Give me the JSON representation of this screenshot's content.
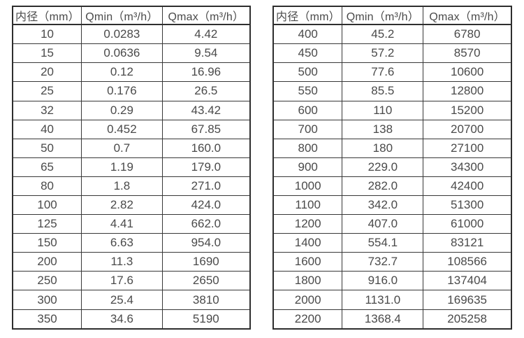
{
  "text_color": "#4a4a4a",
  "border_color": "#2e2e2e",
  "background_color": "#ffffff",
  "tables": [
    {
      "id": "left",
      "headers": [
        "内径（mm）",
        "Qmin（m³/h）",
        "Qmax（m³/h）"
      ],
      "rows": [
        [
          "10",
          "0.0283",
          "4.42"
        ],
        [
          "15",
          "0.0636",
          "9.54"
        ],
        [
          "20",
          "0.12",
          "16.96"
        ],
        [
          "25",
          "0.176",
          "26.5"
        ],
        [
          "32",
          "0.29",
          "43.42"
        ],
        [
          "40",
          "0.452",
          "67.85"
        ],
        [
          "50",
          "0.7",
          "160.0"
        ],
        [
          "65",
          "1.19",
          "179.0"
        ],
        [
          "80",
          "1.8",
          "271.0"
        ],
        [
          "100",
          "2.82",
          "424.0"
        ],
        [
          "125",
          "4.41",
          "662.0"
        ],
        [
          "150",
          "6.63",
          "954.0"
        ],
        [
          "200",
          "11.3",
          "1690"
        ],
        [
          "250",
          "17.6",
          "2650"
        ],
        [
          "300",
          "25.4",
          "3810"
        ],
        [
          "350",
          "34.6",
          "5190"
        ]
      ]
    },
    {
      "id": "right",
      "headers": [
        "内径（mm）",
        "Qmin（m³/h）",
        "Qmax（m³/h）"
      ],
      "rows": [
        [
          "400",
          "45.2",
          "6780"
        ],
        [
          "450",
          "57.2",
          "8570"
        ],
        [
          "500",
          "77.6",
          "10600"
        ],
        [
          "550",
          "85.5",
          "12800"
        ],
        [
          "600",
          "110",
          "15200"
        ],
        [
          "700",
          "138",
          "20700"
        ],
        [
          "800",
          "180",
          "27100"
        ],
        [
          "900",
          "229.0",
          "34300"
        ],
        [
          "1000",
          "282.0",
          "42400"
        ],
        [
          "1100",
          "342.0",
          "51300"
        ],
        [
          "1200",
          "407.0",
          "61000"
        ],
        [
          "1400",
          "554.1",
          "83121"
        ],
        [
          "1600",
          "732.7",
          "108566"
        ],
        [
          "1800",
          "916.0",
          "137404"
        ],
        [
          "2000",
          "1131.0",
          "169635"
        ],
        [
          "2200",
          "1368.4",
          "205258"
        ]
      ]
    }
  ]
}
